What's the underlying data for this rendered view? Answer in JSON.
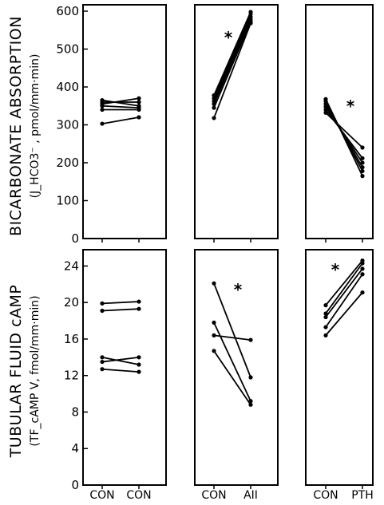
{
  "chart_data": [
    {
      "type": "line",
      "panel": "top-left",
      "ylabel": "BICARBONATE ABSORPTION",
      "ylabel_sub": "(J_HCO3⁻ , pmol/mm·min)",
      "ylim": [
        0,
        600
      ],
      "yticks": [
        "0",
        "100",
        "200",
        "300",
        "400",
        "500",
        "600"
      ],
      "categories": [
        "CON",
        "CON"
      ],
      "significance": "",
      "series": [
        {
          "values": [
            303,
            320
          ]
        },
        {
          "values": [
            340,
            340
          ]
        },
        {
          "values": [
            350,
            345
          ]
        },
        {
          "values": [
            355,
            370
          ]
        },
        {
          "values": [
            360,
            360
          ]
        },
        {
          "values": [
            365,
            350
          ]
        }
      ]
    },
    {
      "type": "line",
      "panel": "top-middle",
      "ylim": [
        0,
        600
      ],
      "categories": [
        "CON",
        "AII"
      ],
      "significance": "*",
      "series": [
        {
          "values": [
            318,
            568
          ]
        },
        {
          "values": [
            345,
            572
          ]
        },
        {
          "values": [
            355,
            578
          ]
        },
        {
          "values": [
            362,
            585
          ]
        },
        {
          "values": [
            370,
            592
          ]
        },
        {
          "values": [
            378,
            598
          ]
        }
      ]
    },
    {
      "type": "line",
      "panel": "top-right",
      "ylim": [
        0,
        600
      ],
      "categories": [
        "CON",
        "PTH"
      ],
      "significance": "*",
      "series": [
        {
          "values": [
            332,
            240
          ]
        },
        {
          "values": [
            340,
            212
          ]
        },
        {
          "values": [
            348,
            200
          ]
        },
        {
          "values": [
            355,
            188
          ]
        },
        {
          "values": [
            362,
            178
          ]
        },
        {
          "values": [
            368,
            165
          ]
        }
      ]
    },
    {
      "type": "line",
      "panel": "bottom-left",
      "ylabel": "TUBULAR FLUID cAMP",
      "ylabel_sub": "(TF_cAMP V, fmol/mm·min)",
      "ylim": [
        0,
        25
      ],
      "yticks": [
        "0",
        "4",
        "8",
        "12",
        "16",
        "20",
        "24"
      ],
      "categories": [
        "CON",
        "CON"
      ],
      "significance": "",
      "series": [
        {
          "values": [
            19.9,
            20.1
          ]
        },
        {
          "values": [
            19.1,
            19.3
          ]
        },
        {
          "values": [
            13.5,
            14.0
          ]
        },
        {
          "values": [
            14.0,
            13.2
          ]
        },
        {
          "values": [
            12.7,
            12.4
          ]
        }
      ]
    },
    {
      "type": "line",
      "panel": "bottom-middle",
      "ylim": [
        0,
        25
      ],
      "categories": [
        "CON",
        "AII"
      ],
      "significance": "*",
      "series": [
        {
          "values": [
            22.1,
            11.8
          ]
        },
        {
          "values": [
            17.8,
            9.2
          ]
        },
        {
          "values": [
            16.4,
            15.9
          ]
        },
        {
          "values": [
            14.7,
            8.8
          ]
        }
      ]
    },
    {
      "type": "line",
      "panel": "bottom-right",
      "ylim": [
        0,
        25
      ],
      "categories": [
        "CON",
        "PTH"
      ],
      "significance": "*",
      "series": [
        {
          "values": [
            19.7,
            24.6
          ]
        },
        {
          "values": [
            18.8,
            24.3
          ]
        },
        {
          "values": [
            18.4,
            23.7
          ]
        },
        {
          "values": [
            17.3,
            23.1
          ]
        },
        {
          "values": [
            16.4,
            21.1
          ]
        }
      ]
    }
  ]
}
